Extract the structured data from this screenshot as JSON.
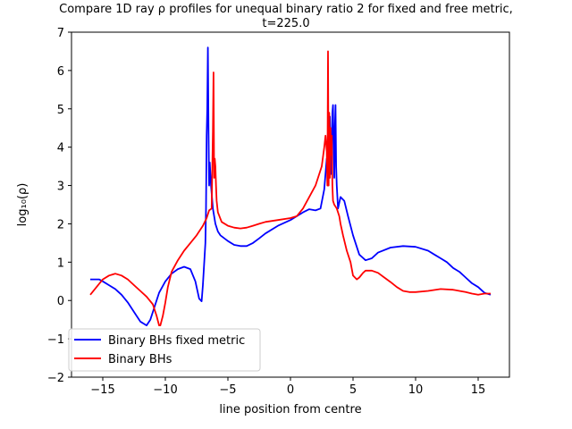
{
  "chart_data": {
    "type": "line",
    "title_line1": "Compare 1D ray ρ profiles for unequal binary ratio 2 for fixed and free metric,",
    "title_line2": "t=225.0",
    "xlabel": "line position from centre",
    "ylabel": "log₁₀(ρ)",
    "xlim": [
      -17.5,
      17.5
    ],
    "ylim": [
      -2,
      7
    ],
    "x_ticks": [
      -15,
      -10,
      -5,
      0,
      5,
      10,
      15
    ],
    "x_tick_labels": [
      "−15",
      "−10",
      "−5",
      "0",
      "5",
      "10",
      "15"
    ],
    "y_ticks": [
      -2,
      -1,
      0,
      1,
      2,
      3,
      4,
      5,
      6,
      7
    ],
    "y_tick_labels": [
      "−2",
      "−1",
      "0",
      "1",
      "2",
      "3",
      "4",
      "5",
      "6",
      "7"
    ],
    "grid": false,
    "legend_position": "lower-left",
    "series": [
      {
        "name": "Binary BHs fixed metric",
        "color": "#0000ff",
        "x": [
          -16.0,
          -15.3,
          -15.0,
          -14.5,
          -14.0,
          -13.5,
          -13.0,
          -12.5,
          -12.0,
          -11.5,
          -11.2,
          -11.0,
          -10.8,
          -10.5,
          -10.0,
          -9.5,
          -9.0,
          -8.5,
          -8.0,
          -7.6,
          -7.3,
          -7.1,
          -7.0,
          -6.8,
          -6.75,
          -6.7,
          -6.65,
          -6.6,
          -6.55,
          -6.5,
          -6.45,
          -6.4,
          -6.35,
          -6.2,
          -6.0,
          -5.8,
          -5.6,
          -5.0,
          -4.5,
          -4.0,
          -3.5,
          -3.0,
          -2.5,
          -2.0,
          -1.0,
          0.0,
          1.0,
          1.5,
          2.0,
          2.4,
          2.7,
          2.9,
          3.0,
          3.05,
          3.1,
          3.15,
          3.2,
          3.25,
          3.3,
          3.35,
          3.4,
          3.45,
          3.5,
          3.55,
          3.6,
          3.65,
          3.7,
          3.8,
          4.0,
          4.3,
          4.6,
          5.0,
          5.5,
          6.0,
          6.5,
          7.0,
          8.0,
          9.0,
          10.0,
          11.0,
          11.5,
          12.0,
          12.5,
          13.0,
          13.5,
          14.0,
          14.5,
          15.0,
          15.5,
          16.0
        ],
        "y": [
          0.55,
          0.55,
          0.5,
          0.4,
          0.3,
          0.15,
          -0.05,
          -0.3,
          -0.55,
          -0.65,
          -0.5,
          -0.3,
          -0.1,
          0.2,
          0.5,
          0.7,
          0.82,
          0.88,
          0.82,
          0.5,
          0.05,
          -0.02,
          0.4,
          1.5,
          2.4,
          4.3,
          5.0,
          6.6,
          4.5,
          3.0,
          3.6,
          3.3,
          3.0,
          2.4,
          2.0,
          1.8,
          1.7,
          1.55,
          1.45,
          1.42,
          1.42,
          1.5,
          1.62,
          1.75,
          1.95,
          2.1,
          2.3,
          2.38,
          2.35,
          2.4,
          2.9,
          3.7,
          3.0,
          3.5,
          4.0,
          4.8,
          3.8,
          3.3,
          4.0,
          4.9,
          5.1,
          4.0,
          3.2,
          4.5,
          5.1,
          3.5,
          3.0,
          2.4,
          2.7,
          2.6,
          2.2,
          1.7,
          1.2,
          1.05,
          1.1,
          1.25,
          1.38,
          1.42,
          1.4,
          1.3,
          1.2,
          1.1,
          1.0,
          0.85,
          0.75,
          0.6,
          0.45,
          0.35,
          0.2,
          0.15
        ]
      },
      {
        "name": "Binary BHs",
        "color": "#ff0000",
        "x": [
          -16.0,
          -15.5,
          -15.0,
          -14.5,
          -14.0,
          -13.5,
          -13.0,
          -12.5,
          -12.0,
          -11.5,
          -11.0,
          -10.7,
          -10.5,
          -10.4,
          -10.2,
          -10.0,
          -9.8,
          -9.5,
          -9.0,
          -8.5,
          -8.0,
          -7.5,
          -7.0,
          -6.7,
          -6.5,
          -6.3,
          -6.2,
          -6.15,
          -6.1,
          -6.05,
          -6.0,
          -5.95,
          -5.9,
          -5.8,
          -5.5,
          -5.0,
          -4.5,
          -4.0,
          -3.5,
          -3.0,
          -2.5,
          -2.0,
          -1.0,
          0.0,
          0.5,
          1.0,
          1.5,
          2.0,
          2.5,
          2.7,
          2.8,
          2.9,
          2.95,
          3.0,
          3.05,
          3.1,
          3.15,
          3.2,
          3.25,
          3.3,
          3.35,
          3.4,
          3.5,
          3.6,
          3.7,
          3.9,
          4.0,
          4.2,
          4.5,
          4.8,
          5.0,
          5.3,
          5.5,
          5.8,
          6.0,
          6.5,
          7.0,
          7.5,
          8.0,
          8.5,
          9.0,
          9.5,
          10.0,
          11.0,
          12.0,
          13.0,
          13.5,
          14.0,
          14.5,
          15.0,
          15.5,
          16.0
        ],
        "y": [
          0.15,
          0.35,
          0.55,
          0.65,
          0.7,
          0.65,
          0.55,
          0.4,
          0.25,
          0.1,
          -0.1,
          -0.4,
          -0.65,
          -0.65,
          -0.4,
          -0.05,
          0.35,
          0.75,
          1.05,
          1.3,
          1.5,
          1.7,
          1.95,
          2.15,
          2.35,
          2.4,
          4.4,
          5.95,
          3.2,
          3.7,
          3.5,
          3.0,
          2.6,
          2.3,
          2.05,
          1.95,
          1.9,
          1.88,
          1.9,
          1.95,
          2.0,
          2.05,
          2.1,
          2.15,
          2.2,
          2.4,
          2.7,
          3.0,
          3.5,
          4.0,
          4.3,
          3.9,
          3.0,
          6.5,
          3.0,
          4.9,
          3.2,
          4.5,
          3.8,
          4.3,
          3.0,
          2.6,
          2.5,
          2.45,
          2.4,
          2.2,
          2.0,
          1.7,
          1.3,
          1.0,
          0.65,
          0.55,
          0.6,
          0.72,
          0.78,
          0.78,
          0.72,
          0.6,
          0.48,
          0.35,
          0.25,
          0.22,
          0.22,
          0.25,
          0.3,
          0.28,
          0.25,
          0.22,
          0.18,
          0.15,
          0.18,
          0.18
        ]
      }
    ]
  }
}
